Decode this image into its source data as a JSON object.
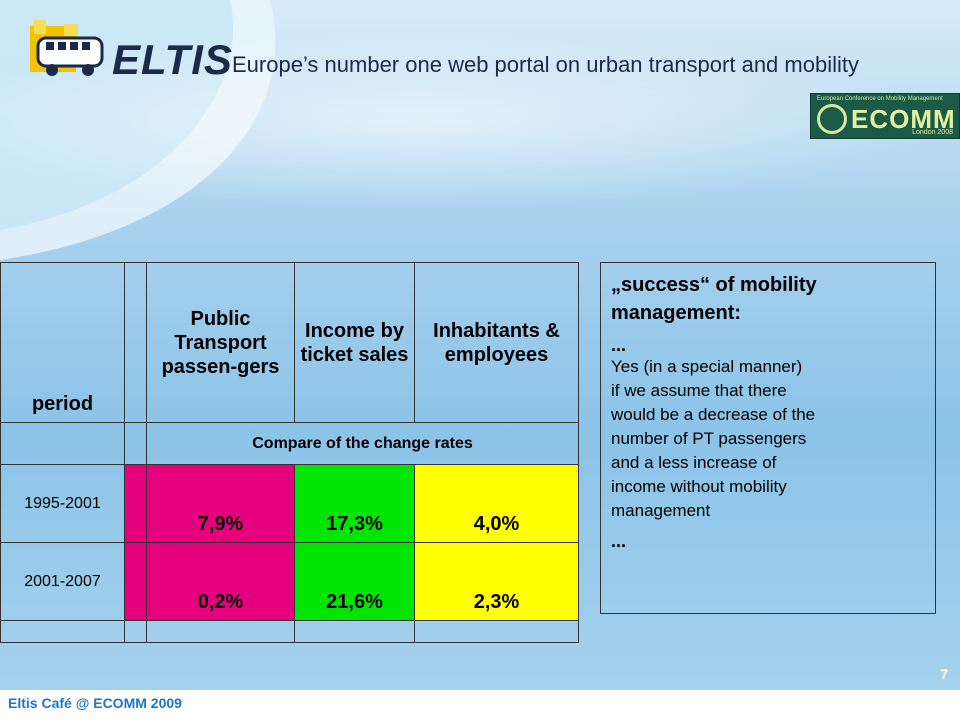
{
  "header": {
    "brand": "ELTIS",
    "tagline": "Europe’s number one web portal on urban transport and mobility",
    "ecomm_logo": {
      "small_text": "European Conference on Mobility Management",
      "word": "ECOMM",
      "sub": "London 2008"
    }
  },
  "table": {
    "headers": {
      "period": "period",
      "col1": "Public Transport passen-gers",
      "col2": "Income by ticket sales",
      "col3": "Inhabitants & employees"
    },
    "subheader": "Compare of the change rates",
    "rows": [
      {
        "period": "1995-2001",
        "pt": "7,9%",
        "income": "17,3%",
        "inhabitants": "4,0%"
      },
      {
        "period": "2001-2007",
        "pt": "0,2%",
        "income": "21,6%",
        "inhabitants": "2,3%"
      }
    ]
  },
  "note": {
    "title": "„success“ of mobility management:",
    "dots_top": "...",
    "lines": [
      "Yes (in a special manner)",
      "if we assume that there",
      "would be a decrease of the",
      "number of PT passengers",
      "and a less increase of",
      "income without mobility",
      "management"
    ],
    "dots_bottom": "..."
  },
  "footer": {
    "text": "Eltis Café @ ECOMM 2009",
    "page": "7"
  },
  "colors": {
    "pt": "#e6007e",
    "income": "#00e600",
    "inhabitants": "#ffff00"
  }
}
